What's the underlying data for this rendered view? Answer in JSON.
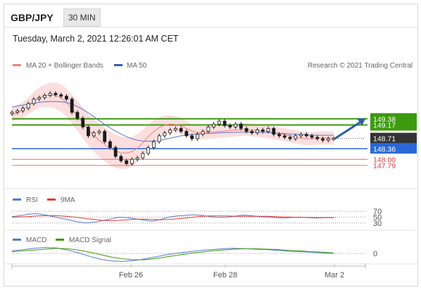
{
  "header": {
    "pair": "GBP/JPY",
    "timeframe": "30 MIN"
  },
  "timestamp": "Tuesday, March 2, 2021 12:26:01 AM CET",
  "credit": "Research © 2021 Trading Central",
  "legend": {
    "ma20": "MA 20 + Bollinger Bands",
    "ma50": "MA 50",
    "rsi": "RSI",
    "rsi_ma": "9MA",
    "macd": "MACD",
    "macd_signal": "MACD Signal"
  },
  "colors": {
    "green": "#3c9a0e",
    "blue": "#2a68d8",
    "red": "#e23b3b",
    "band": "#fbd3d3",
    "ma20": "#f08080",
    "ma50": "#5a79c6",
    "arrow": "#2a5fa8",
    "candle": "#1a1a1a"
  },
  "chart_data": [
    {
      "type": "line",
      "panel": "price",
      "title": "GBP/JPY",
      "x_ticks": [
        "Feb 26",
        "Feb 28",
        "Mar 2"
      ],
      "y_levels": [
        {
          "label": "149.38",
          "value": 149.38,
          "color": "green"
        },
        {
          "label": "149.17",
          "value": 149.17,
          "color": "green"
        },
        {
          "label": "148.71",
          "value": 148.71,
          "color": "dark",
          "note": "last price"
        },
        {
          "label": "148.36",
          "value": 148.36,
          "color": "blue"
        },
        {
          "label": "148.00",
          "value": 148.0,
          "color": "red"
        },
        {
          "label": "147.79",
          "value": 147.79,
          "color": "red"
        }
      ],
      "series": [
        {
          "name": "MA 20 + Bollinger Bands",
          "values": [
            149.52,
            149.59,
            149.68,
            149.82,
            149.98,
            150.1,
            150.17,
            150.19,
            150.17,
            150.09,
            149.93,
            149.72,
            149.48,
            149.24,
            149.0,
            148.82,
            148.64,
            148.5,
            148.37,
            148.28,
            148.22,
            148.21,
            148.26,
            148.38,
            148.56,
            148.77,
            148.95,
            149.08,
            149.16,
            149.2,
            149.19,
            149.14,
            149.05,
            148.96,
            148.91,
            148.9,
            148.92,
            148.93,
            148.95,
            148.96,
            148.98,
            149.0,
            149.01,
            149.01,
            149.0,
            148.98,
            148.96,
            148.93,
            148.9,
            148.87,
            148.84,
            148.8,
            148.76,
            148.72,
            148.7,
            148.7,
            148.72,
            148.73,
            148.73,
            148.71
          ]
        },
        {
          "name": "MA 50",
          "values": [
            149.78,
            149.81,
            149.85,
            149.88,
            149.91,
            149.94,
            149.96,
            149.97,
            149.97,
            149.96,
            149.93,
            149.88,
            149.8,
            149.7,
            149.58,
            149.45,
            149.32,
            149.19,
            149.07,
            148.96,
            148.86,
            148.77,
            148.7,
            148.65,
            148.62,
            148.61,
            148.62,
            148.64,
            148.68,
            148.72,
            148.76,
            148.8,
            148.83,
            148.85,
            148.86,
            148.87,
            148.88,
            148.89,
            148.9,
            148.91,
            148.91,
            148.92,
            148.92,
            148.92,
            148.92,
            148.92,
            148.91,
            148.91,
            148.9,
            148.89,
            148.88,
            148.86,
            148.85,
            148.84,
            148.83,
            148.82,
            148.82,
            148.82,
            148.82,
            148.82
          ]
        },
        {
          "name": "price",
          "values": [
            149.6,
            149.65,
            149.74,
            149.9,
            150.05,
            150.1,
            150.18,
            150.25,
            150.2,
            150.15,
            150.05,
            149.6,
            149.4,
            149.1,
            148.8,
            148.9,
            148.95,
            148.6,
            148.4,
            148.1,
            147.95,
            147.85,
            148.0,
            148.05,
            148.2,
            148.4,
            148.6,
            148.8,
            148.9,
            149.0,
            149.05,
            148.95,
            148.8,
            148.7,
            148.85,
            148.95,
            149.1,
            149.2,
            149.3,
            149.15,
            149.1,
            149.2,
            149.05,
            148.95,
            148.9,
            149.0,
            148.95,
            149.05,
            148.85,
            148.8,
            148.75,
            148.7,
            148.8,
            148.85,
            148.8,
            148.75,
            148.7,
            148.65,
            148.7,
            148.71
          ]
        }
      ],
      "projection": {
        "from": 148.71,
        "to": 149.38
      }
    },
    {
      "type": "line",
      "panel": "rsi",
      "y_ticks": [
        "70",
        "50",
        "30"
      ],
      "series": [
        {
          "name": "RSI",
          "values": [
            52,
            55,
            60,
            62,
            58,
            52,
            46,
            40,
            34,
            30,
            33,
            38,
            44,
            50,
            48,
            44,
            40,
            36,
            42,
            50,
            54,
            56,
            58,
            56,
            52,
            49,
            50,
            53,
            57,
            55,
            52,
            50,
            48,
            47,
            49,
            50,
            48,
            47,
            49,
            48
          ]
        },
        {
          "name": "9MA",
          "values": [
            50,
            51,
            52,
            54,
            55,
            55,
            54,
            52,
            49,
            45,
            42,
            39,
            38,
            39,
            41,
            43,
            43,
            42,
            41,
            42,
            44,
            47,
            50,
            53,
            54,
            54,
            54,
            53,
            53,
            53,
            53,
            53,
            52,
            51,
            50,
            49,
            49,
            48,
            48,
            48
          ]
        }
      ]
    },
    {
      "type": "line",
      "panel": "macd",
      "y_ticks": [
        "0"
      ],
      "series": [
        {
          "name": "MACD",
          "values": [
            0.06,
            0.09,
            0.12,
            0.14,
            0.13,
            0.08,
            0.01,
            -0.07,
            -0.14,
            -0.18,
            -0.19,
            -0.17,
            -0.13,
            -0.08,
            -0.03,
            0.01,
            0.04,
            0.07,
            0.09,
            0.11,
            0.12,
            0.11,
            0.1,
            0.09,
            0.07,
            0.05,
            0.04,
            0.03,
            0.01,
            0.0
          ]
        },
        {
          "name": "MACD Signal",
          "values": [
            0.04,
            0.06,
            0.08,
            0.1,
            0.12,
            0.11,
            0.08,
            0.03,
            -0.03,
            -0.09,
            -0.13,
            -0.15,
            -0.15,
            -0.12,
            -0.08,
            -0.04,
            0.0,
            0.03,
            0.06,
            0.08,
            0.1,
            0.11,
            0.11,
            0.1,
            0.09,
            0.07,
            0.06,
            0.04,
            0.03,
            0.01
          ]
        }
      ]
    }
  ]
}
